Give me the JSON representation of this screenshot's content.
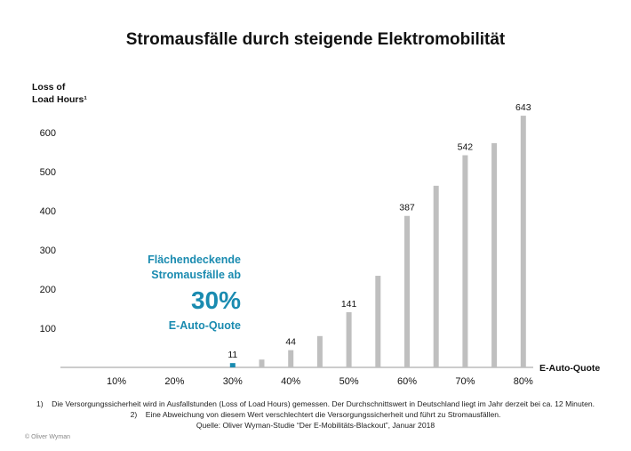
{
  "title": "Stromausfälle durch steigende Elektromobilität",
  "footnotes": [
    "1)    Die Versorgungssicherheit wird in Ausfallstunden (Loss of Load Hours) gemessen. Der Durchschnittswert in Deutschland liegt im Jahr derzeit bei ca. 12 Minuten.",
    "2)    Eine Abweichung von diesem Wert verschlechtert die Versorgungssicherheit und führt zu Stromausfällen.",
    "Quelle: Oliver Wyman-Studie “Der E-Mobilitäts-Blackout”, Januar 2018"
  ],
  "copyright": "© Oliver Wyman",
  "colors": {
    "bar": "#bfbfbf",
    "highlight": "#1a8bb0",
    "text": "#111111"
  },
  "chart_data": {
    "type": "bar",
    "ylabel_line1": "Loss of",
    "ylabel_line2": "Load Hours¹",
    "xlabel": "E-Auto-Quote",
    "x": [
      30,
      35,
      40,
      45,
      50,
      55,
      60,
      65,
      70,
      75,
      80
    ],
    "values": [
      11,
      20,
      44,
      80,
      141,
      234,
      387,
      464,
      542,
      573,
      643
    ],
    "data_labels": [
      "11",
      "",
      "44",
      "",
      "141",
      "",
      "387",
      "",
      "542",
      "",
      "643"
    ],
    "highlight_index": 0,
    "x_ticks": [
      "10%",
      "20%",
      "30%",
      "40%",
      "50%",
      "60%",
      "70%",
      "80%"
    ],
    "x_tick_values": [
      10,
      20,
      30,
      40,
      50,
      60,
      70,
      80
    ],
    "y_ticks": [
      100,
      200,
      300,
      400,
      500,
      600
    ],
    "xlim": [
      0,
      82
    ],
    "ylim": [
      0,
      650
    ],
    "grid": false,
    "annotation": {
      "line1": "Flächendeckende",
      "line2": "Stromausfälle ab",
      "big": "30%",
      "line3": "E-Auto-Quote"
    }
  }
}
